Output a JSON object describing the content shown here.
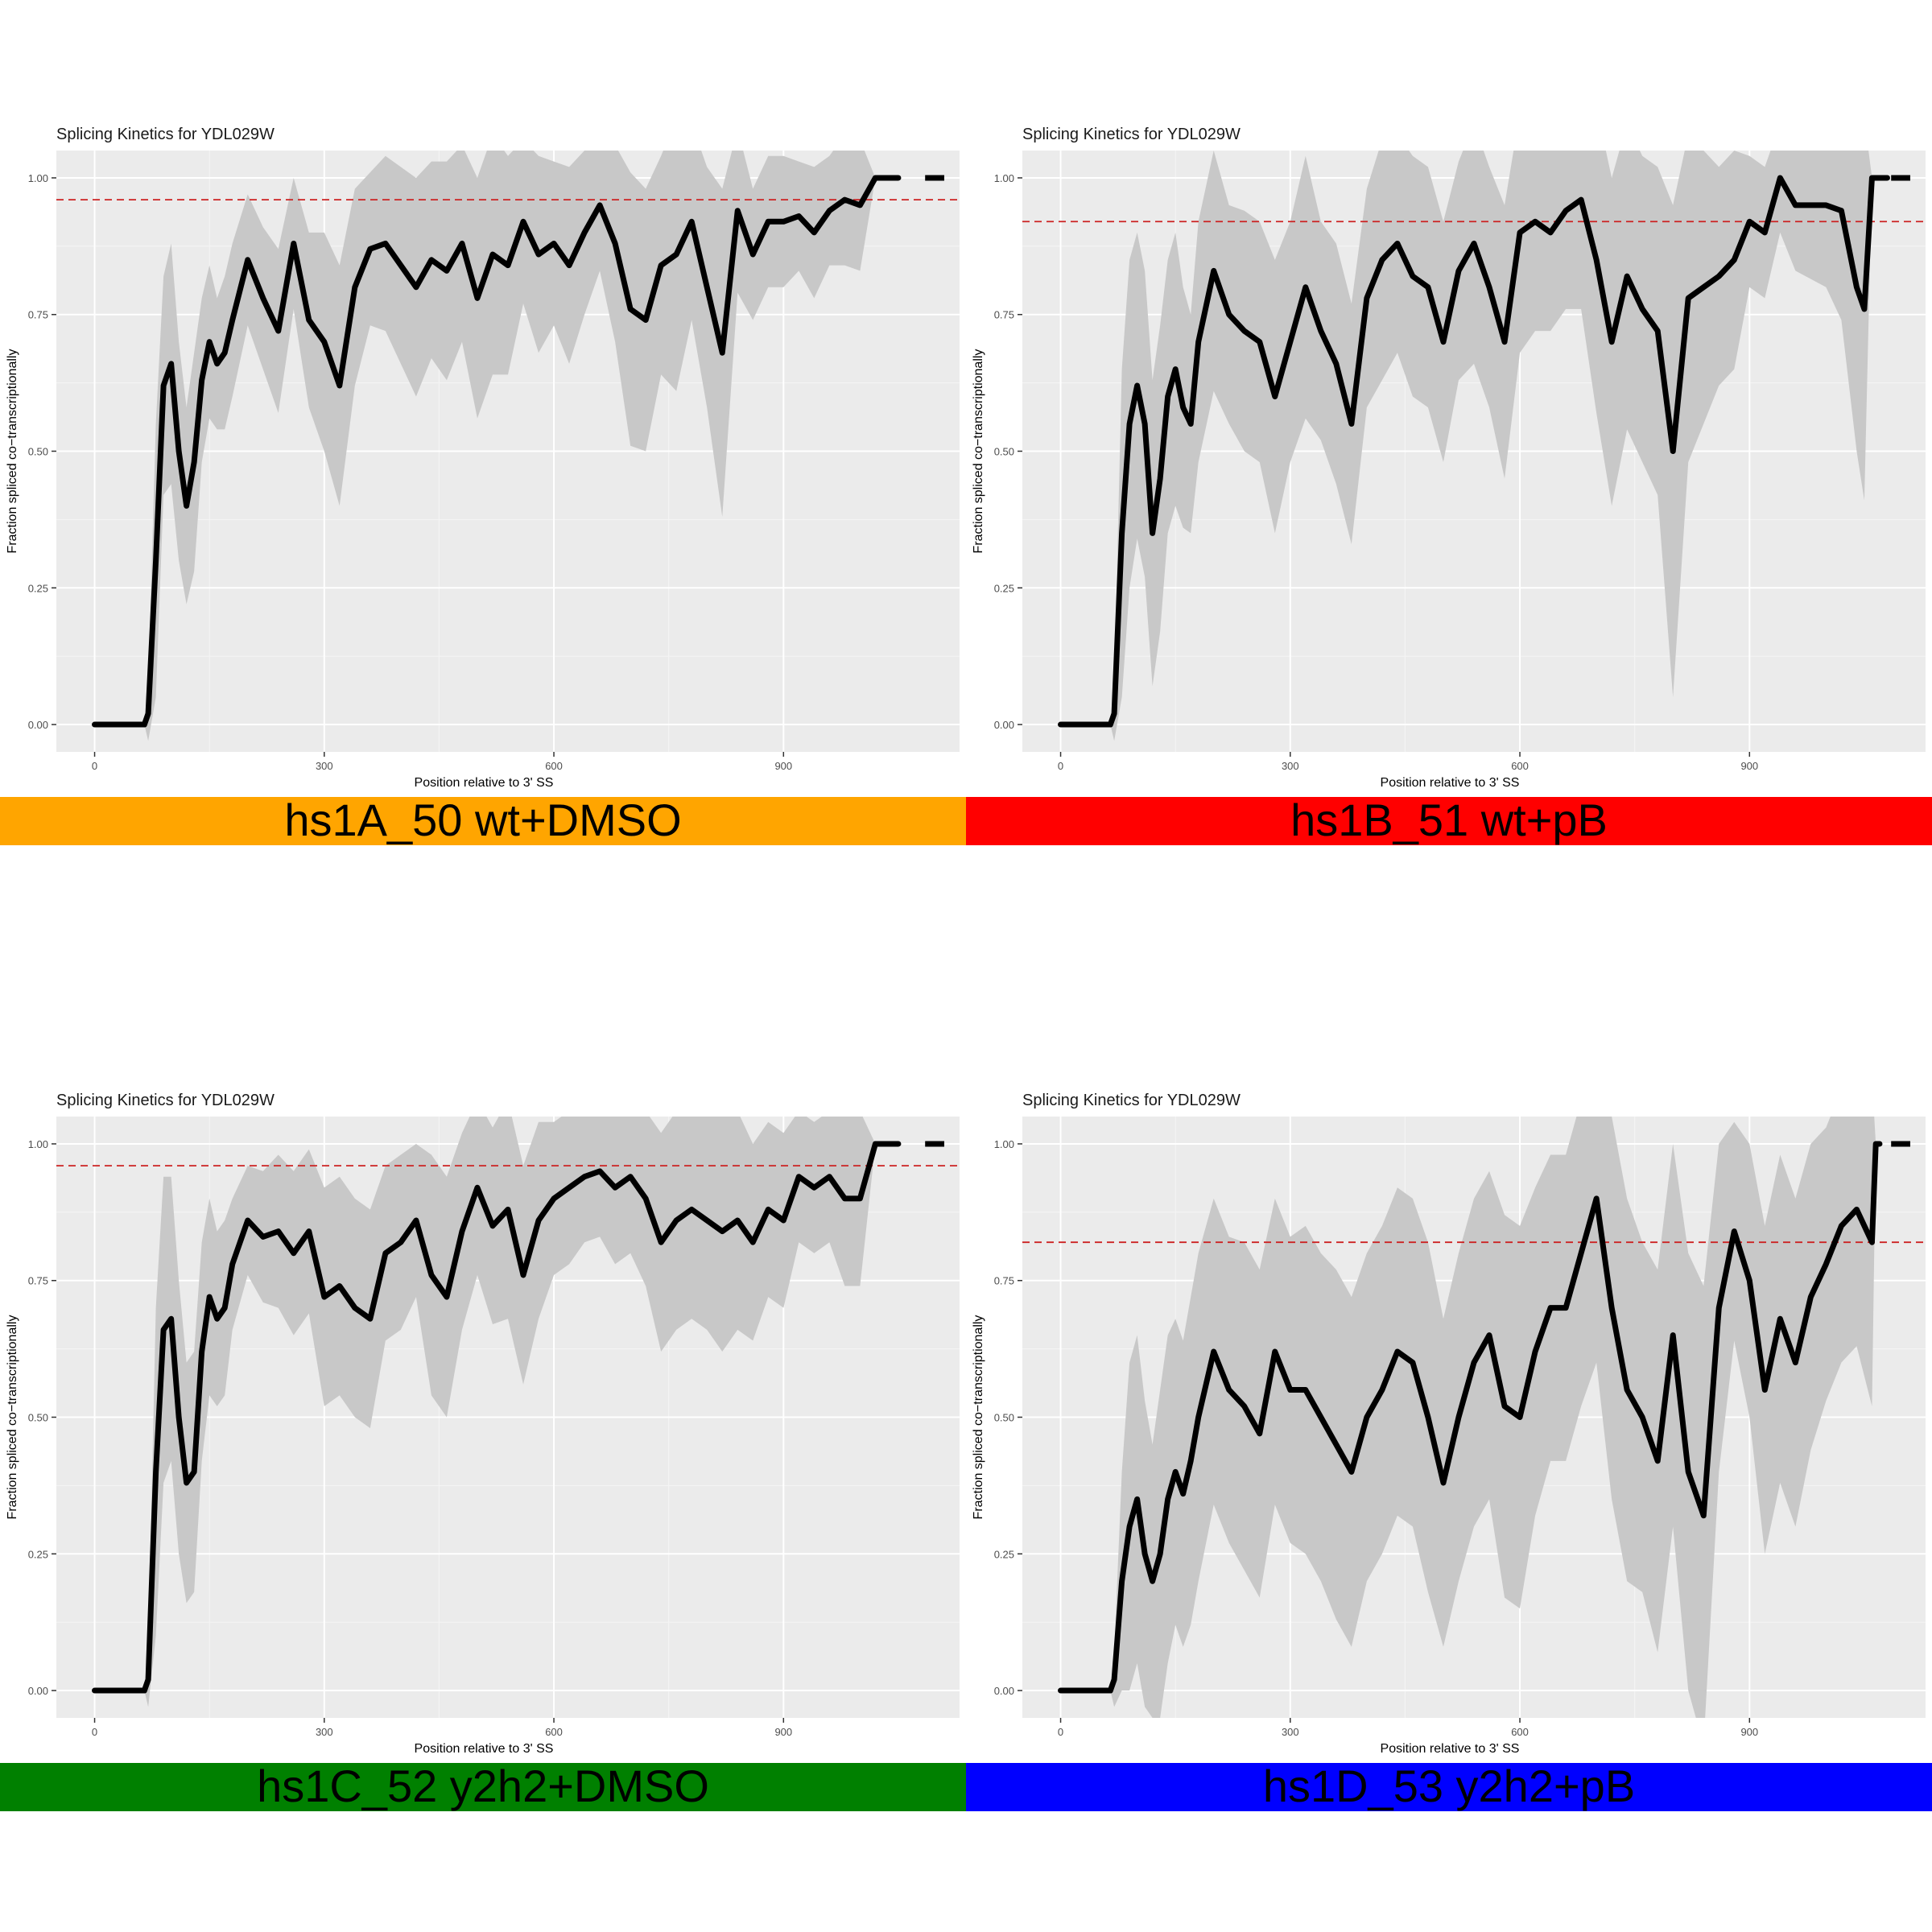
{
  "colors": {
    "panel_bg": "#ebebeb",
    "grid_major": "#ffffff",
    "ribbon": "#c8c8c8",
    "line": "#000000",
    "threshold": "#cc2222",
    "banner_orange": "#ffa500",
    "banner_red": "#ff0000",
    "banner_green": "#008000",
    "banner_blue": "#0000ff"
  },
  "chart_data": [
    {
      "type": "line",
      "title": "Splicing Kinetics for YDL029W",
      "xlabel": "Position relative to 3' SS",
      "ylabel": "Fraction spliced co−transcriptionally",
      "xlim": [
        -50,
        1130
      ],
      "ylim": [
        -0.05,
        1.05
      ],
      "xticks": [
        "0",
        "300",
        "600",
        "900"
      ],
      "yticks": [
        "0.00",
        "0.25",
        "0.50",
        "0.75",
        "1.00"
      ],
      "grid": true,
      "threshold": 0.96,
      "banner": "hs1A_50 wt+DMSO",
      "banner_color": "#ffa500",
      "x": [
        0,
        65,
        70,
        80,
        90,
        100,
        110,
        120,
        130,
        140,
        150,
        160,
        170,
        180,
        200,
        220,
        240,
        260,
        280,
        300,
        320,
        340,
        360,
        380,
        400,
        420,
        440,
        460,
        480,
        500,
        520,
        540,
        560,
        580,
        600,
        620,
        640,
        660,
        680,
        700,
        720,
        740,
        760,
        780,
        800,
        820,
        840,
        860,
        880,
        900,
        920,
        940,
        960,
        980,
        1000,
        1020,
        1040,
        1050
      ],
      "y": [
        0,
        0,
        0.02,
        0.3,
        0.62,
        0.66,
        0.5,
        0.4,
        0.48,
        0.63,
        0.7,
        0.66,
        0.68,
        0.74,
        0.85,
        0.78,
        0.72,
        0.88,
        0.74,
        0.7,
        0.62,
        0.8,
        0.87,
        0.88,
        0.84,
        0.8,
        0.85,
        0.83,
        0.88,
        0.78,
        0.86,
        0.84,
        0.92,
        0.86,
        0.88,
        0.84,
        0.9,
        0.95,
        0.88,
        0.76,
        0.74,
        0.84,
        0.86,
        0.92,
        0.8,
        0.68,
        0.94,
        0.86,
        0.92,
        0.92,
        0.93,
        0.9,
        0.94,
        0.96,
        0.95,
        1.0,
        1.0,
        1.0
      ],
      "ribbon_half_width": [
        0,
        0,
        0.05,
        0.25,
        0.2,
        0.22,
        0.2,
        0.18,
        0.2,
        0.15,
        0.14,
        0.12,
        0.14,
        0.14,
        0.12,
        0.13,
        0.15,
        0.12,
        0.16,
        0.2,
        0.22,
        0.18,
        0.14,
        0.16,
        0.18,
        0.2,
        0.18,
        0.2,
        0.18,
        0.22,
        0.22,
        0.2,
        0.15,
        0.18,
        0.15,
        0.18,
        0.15,
        0.12,
        0.18,
        0.25,
        0.24,
        0.2,
        0.25,
        0.18,
        0.22,
        0.3,
        0.15,
        0.12,
        0.12,
        0.12,
        0.1,
        0.12,
        0.1,
        0.12,
        0.12,
        0,
        0,
        0
      ]
    },
    {
      "type": "line",
      "title": "Splicing Kinetics for YDL029W",
      "xlabel": "Position relative to 3' SS",
      "ylabel": "Fraction spliced co−transcriptionally",
      "xlim": [
        -50,
        1130
      ],
      "ylim": [
        -0.05,
        1.05
      ],
      "xticks": [
        "0",
        "300",
        "600",
        "900"
      ],
      "yticks": [
        "0.00",
        "0.25",
        "0.50",
        "0.75",
        "1.00"
      ],
      "grid": true,
      "threshold": 0.92,
      "banner": "hs1B_51 wt+pB",
      "banner_color": "#ff0000",
      "x": [
        0,
        65,
        70,
        80,
        90,
        100,
        110,
        120,
        130,
        140,
        150,
        160,
        170,
        180,
        200,
        220,
        240,
        260,
        280,
        300,
        320,
        340,
        360,
        380,
        400,
        420,
        440,
        460,
        480,
        500,
        520,
        540,
        560,
        580,
        600,
        620,
        640,
        660,
        680,
        700,
        720,
        740,
        760,
        780,
        800,
        820,
        840,
        860,
        880,
        900,
        920,
        940,
        960,
        1000,
        1020,
        1040,
        1050,
        1060,
        1065,
        1080
      ],
      "y": [
        0,
        0,
        0.02,
        0.35,
        0.55,
        0.62,
        0.55,
        0.35,
        0.45,
        0.6,
        0.65,
        0.58,
        0.55,
        0.7,
        0.83,
        0.75,
        0.72,
        0.7,
        0.6,
        0.7,
        0.8,
        0.72,
        0.66,
        0.55,
        0.78,
        0.85,
        0.88,
        0.82,
        0.8,
        0.7,
        0.83,
        0.88,
        0.8,
        0.7,
        0.9,
        0.92,
        0.9,
        0.94,
        0.96,
        0.85,
        0.7,
        0.82,
        0.76,
        0.72,
        0.5,
        0.78,
        0.8,
        0.82,
        0.85,
        0.92,
        0.9,
        1.0,
        0.95,
        0.95,
        0.94,
        0.8,
        0.76,
        1.0,
        1.0,
        1.0
      ],
      "ribbon_half_width": [
        0,
        0,
        0.05,
        0.3,
        0.3,
        0.28,
        0.28,
        0.28,
        0.28,
        0.25,
        0.25,
        0.22,
        0.2,
        0.22,
        0.22,
        0.2,
        0.22,
        0.22,
        0.25,
        0.22,
        0.24,
        0.2,
        0.22,
        0.22,
        0.2,
        0.22,
        0.2,
        0.22,
        0.22,
        0.22,
        0.2,
        0.22,
        0.22,
        0.25,
        0.22,
        0.2,
        0.18,
        0.18,
        0.2,
        0.28,
        0.3,
        0.28,
        0.28,
        0.3,
        0.45,
        0.3,
        0.25,
        0.2,
        0.2,
        0.12,
        0.12,
        0.1,
        0.12,
        0.15,
        0.2,
        0.3,
        0.35,
        0,
        0,
        0
      ]
    },
    {
      "type": "line",
      "title": "Splicing Kinetics for YDL029W",
      "xlabel": "Position relative to 3' SS",
      "ylabel": "Fraction spliced co−transcriptionally",
      "xlim": [
        -50,
        1130
      ],
      "ylim": [
        -0.05,
        1.05
      ],
      "xticks": [
        "0",
        "300",
        "600",
        "900"
      ],
      "yticks": [
        "0.00",
        "0.25",
        "0.50",
        "0.75",
        "1.00"
      ],
      "grid": true,
      "threshold": 0.96,
      "banner": "hs1C_52 y2h2+DMSO",
      "banner_color": "#008000",
      "x": [
        0,
        65,
        70,
        80,
        90,
        100,
        110,
        120,
        130,
        140,
        150,
        160,
        170,
        180,
        200,
        220,
        240,
        260,
        280,
        300,
        320,
        340,
        360,
        380,
        400,
        420,
        440,
        460,
        480,
        500,
        520,
        540,
        560,
        580,
        600,
        620,
        640,
        660,
        680,
        700,
        720,
        740,
        760,
        780,
        800,
        820,
        840,
        860,
        880,
        900,
        920,
        940,
        960,
        980,
        1000,
        1020,
        1040,
        1050
      ],
      "y": [
        0,
        0,
        0.02,
        0.4,
        0.66,
        0.68,
        0.5,
        0.38,
        0.4,
        0.62,
        0.72,
        0.68,
        0.7,
        0.78,
        0.86,
        0.83,
        0.84,
        0.8,
        0.84,
        0.72,
        0.74,
        0.7,
        0.68,
        0.8,
        0.82,
        0.86,
        0.76,
        0.72,
        0.84,
        0.92,
        0.85,
        0.88,
        0.76,
        0.86,
        0.9,
        0.92,
        0.94,
        0.95,
        0.92,
        0.94,
        0.9,
        0.82,
        0.86,
        0.88,
        0.86,
        0.84,
        0.86,
        0.82,
        0.88,
        0.86,
        0.94,
        0.92,
        0.94,
        0.9,
        0.9,
        1.0,
        1.0,
        1.0
      ],
      "ribbon_half_width": [
        0,
        0,
        0.05,
        0.3,
        0.28,
        0.26,
        0.25,
        0.22,
        0.22,
        0.2,
        0.18,
        0.16,
        0.16,
        0.12,
        0.1,
        0.12,
        0.14,
        0.15,
        0.15,
        0.2,
        0.2,
        0.2,
        0.2,
        0.16,
        0.16,
        0.14,
        0.22,
        0.22,
        0.18,
        0.16,
        0.18,
        0.2,
        0.2,
        0.18,
        0.14,
        0.14,
        0.12,
        0.12,
        0.14,
        0.14,
        0.16,
        0.2,
        0.2,
        0.2,
        0.2,
        0.22,
        0.2,
        0.18,
        0.16,
        0.16,
        0.12,
        0.12,
        0.12,
        0.16,
        0.16,
        0,
        0,
        0
      ]
    },
    {
      "type": "line",
      "title": "Splicing Kinetics for YDL029W",
      "xlabel": "Position relative to 3' SS",
      "ylabel": "Fraction spliced co−transcriptionally",
      "xlim": [
        -50,
        1130
      ],
      "ylim": [
        -0.05,
        1.05
      ],
      "xticks": [
        "0",
        "300",
        "600",
        "900"
      ],
      "yticks": [
        "0.00",
        "0.25",
        "0.50",
        "0.75",
        "1.00"
      ],
      "grid": true,
      "threshold": 0.82,
      "banner": "hs1D_53 y2h2+pB",
      "banner_color": "#0000ff",
      "x": [
        0,
        65,
        70,
        80,
        90,
        100,
        110,
        120,
        130,
        140,
        150,
        160,
        170,
        180,
        200,
        220,
        240,
        260,
        280,
        300,
        320,
        340,
        360,
        380,
        400,
        420,
        440,
        460,
        480,
        500,
        520,
        540,
        560,
        580,
        600,
        620,
        640,
        660,
        680,
        700,
        720,
        740,
        760,
        780,
        800,
        820,
        840,
        860,
        880,
        900,
        920,
        940,
        960,
        980,
        1000,
        1020,
        1040,
        1060,
        1065,
        1070
      ],
      "y": [
        0,
        0,
        0.02,
        0.2,
        0.3,
        0.35,
        0.25,
        0.2,
        0.25,
        0.35,
        0.4,
        0.36,
        0.42,
        0.5,
        0.62,
        0.55,
        0.52,
        0.47,
        0.62,
        0.55,
        0.55,
        0.5,
        0.45,
        0.4,
        0.5,
        0.55,
        0.62,
        0.6,
        0.5,
        0.38,
        0.5,
        0.6,
        0.65,
        0.52,
        0.5,
        0.62,
        0.7,
        0.7,
        0.8,
        0.9,
        0.7,
        0.55,
        0.5,
        0.42,
        0.65,
        0.4,
        0.32,
        0.7,
        0.84,
        0.75,
        0.55,
        0.68,
        0.6,
        0.72,
        0.78,
        0.85,
        0.88,
        0.82,
        1.0,
        1.0
      ],
      "ribbon_half_width": [
        0,
        0,
        0.05,
        0.2,
        0.3,
        0.3,
        0.28,
        0.25,
        0.3,
        0.3,
        0.28,
        0.28,
        0.3,
        0.3,
        0.28,
        0.28,
        0.3,
        0.3,
        0.28,
        0.28,
        0.3,
        0.3,
        0.32,
        0.32,
        0.3,
        0.3,
        0.3,
        0.3,
        0.32,
        0.3,
        0.3,
        0.3,
        0.3,
        0.35,
        0.35,
        0.3,
        0.28,
        0.28,
        0.28,
        0.3,
        0.35,
        0.35,
        0.32,
        0.35,
        0.35,
        0.4,
        0.42,
        0.3,
        0.2,
        0.25,
        0.3,
        0.3,
        0.3,
        0.28,
        0.25,
        0.25,
        0.25,
        0.3,
        0,
        0
      ]
    }
  ]
}
